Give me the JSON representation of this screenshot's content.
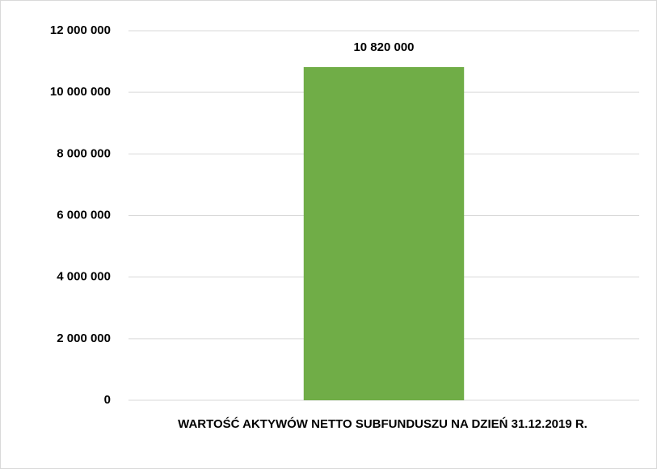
{
  "chart_data": {
    "type": "bar",
    "categories": [
      "WARTOŚĆ AKTYWÓW NETTO SUBFUNDUSZU NA DZIEŃ 31.12.2019 R."
    ],
    "values": [
      10820000
    ],
    "value_labels": [
      "10 820 000"
    ],
    "color": "#70ad47",
    "ylim": [
      0,
      12000000
    ],
    "yticks": [
      0,
      {
        "value": 2000000,
        "label": "2 000 000"
      },
      {
        "value": 4000000,
        "label": "4 000 000"
      },
      {
        "value": 6000000,
        "label": "6 000 000"
      },
      {
        "value": 8000000,
        "label": "8 000 000"
      },
      {
        "value": 10000000,
        "label": "10 000 000"
      },
      {
        "value": 12000000,
        "label": "12 000 000"
      }
    ],
    "grid": true
  }
}
